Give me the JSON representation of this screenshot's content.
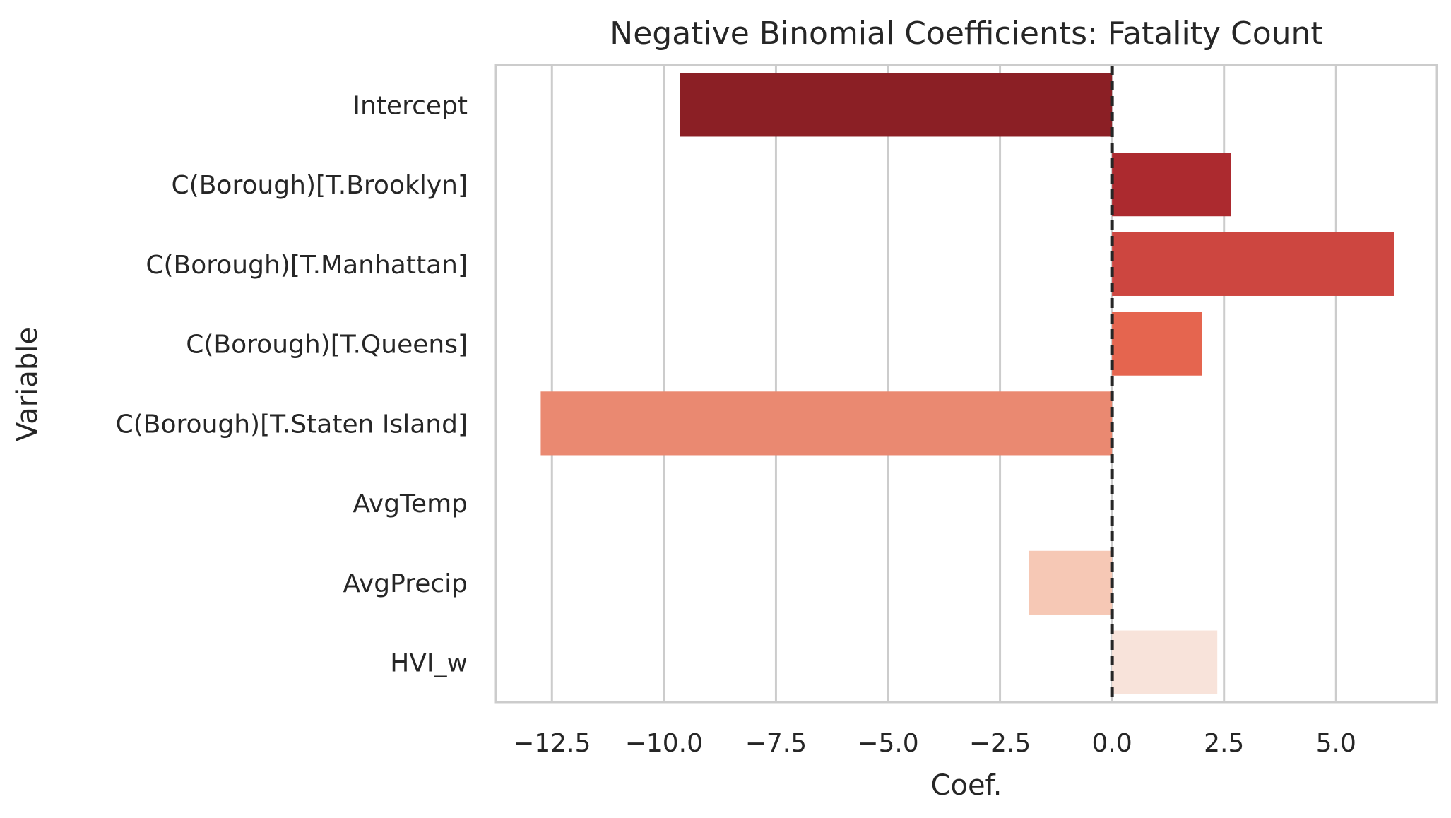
{
  "chart_data": {
    "type": "bar",
    "orientation": "horizontal",
    "title": "Negative Binomial Coefficients: Fatality Count",
    "xlabel": "Coef.",
    "ylabel": "Variable",
    "categories": [
      "Intercept",
      "C(Borough)[T.Brooklyn]",
      "C(Borough)[T.Manhattan]",
      "C(Borough)[T.Queens]",
      "C(Borough)[T.Staten Island]",
      "AvgTemp",
      "AvgPrecip",
      "HVI_w"
    ],
    "values": [
      -9.65,
      2.65,
      6.3,
      2.0,
      -12.75,
      0.0,
      -1.85,
      2.35
    ],
    "colors": [
      "#8b1f25",
      "#ac2a2f",
      "#cd4640",
      "#e5654f",
      "#ea8971",
      "#f3b096",
      "#f6c8b5",
      "#f8e3da"
    ],
    "xlim": [
      -13.75,
      7.25
    ],
    "xticks": [
      -12.5,
      -10.0,
      -7.5,
      -5.0,
      -2.5,
      0.0,
      2.5,
      5.0
    ],
    "xtick_labels": [
      "−12.5",
      "−10.0",
      "−7.5",
      "−5.0",
      "−2.5",
      "0.0",
      "2.5",
      "5.0"
    ],
    "reference_line": 0,
    "grid": "vertical"
  }
}
